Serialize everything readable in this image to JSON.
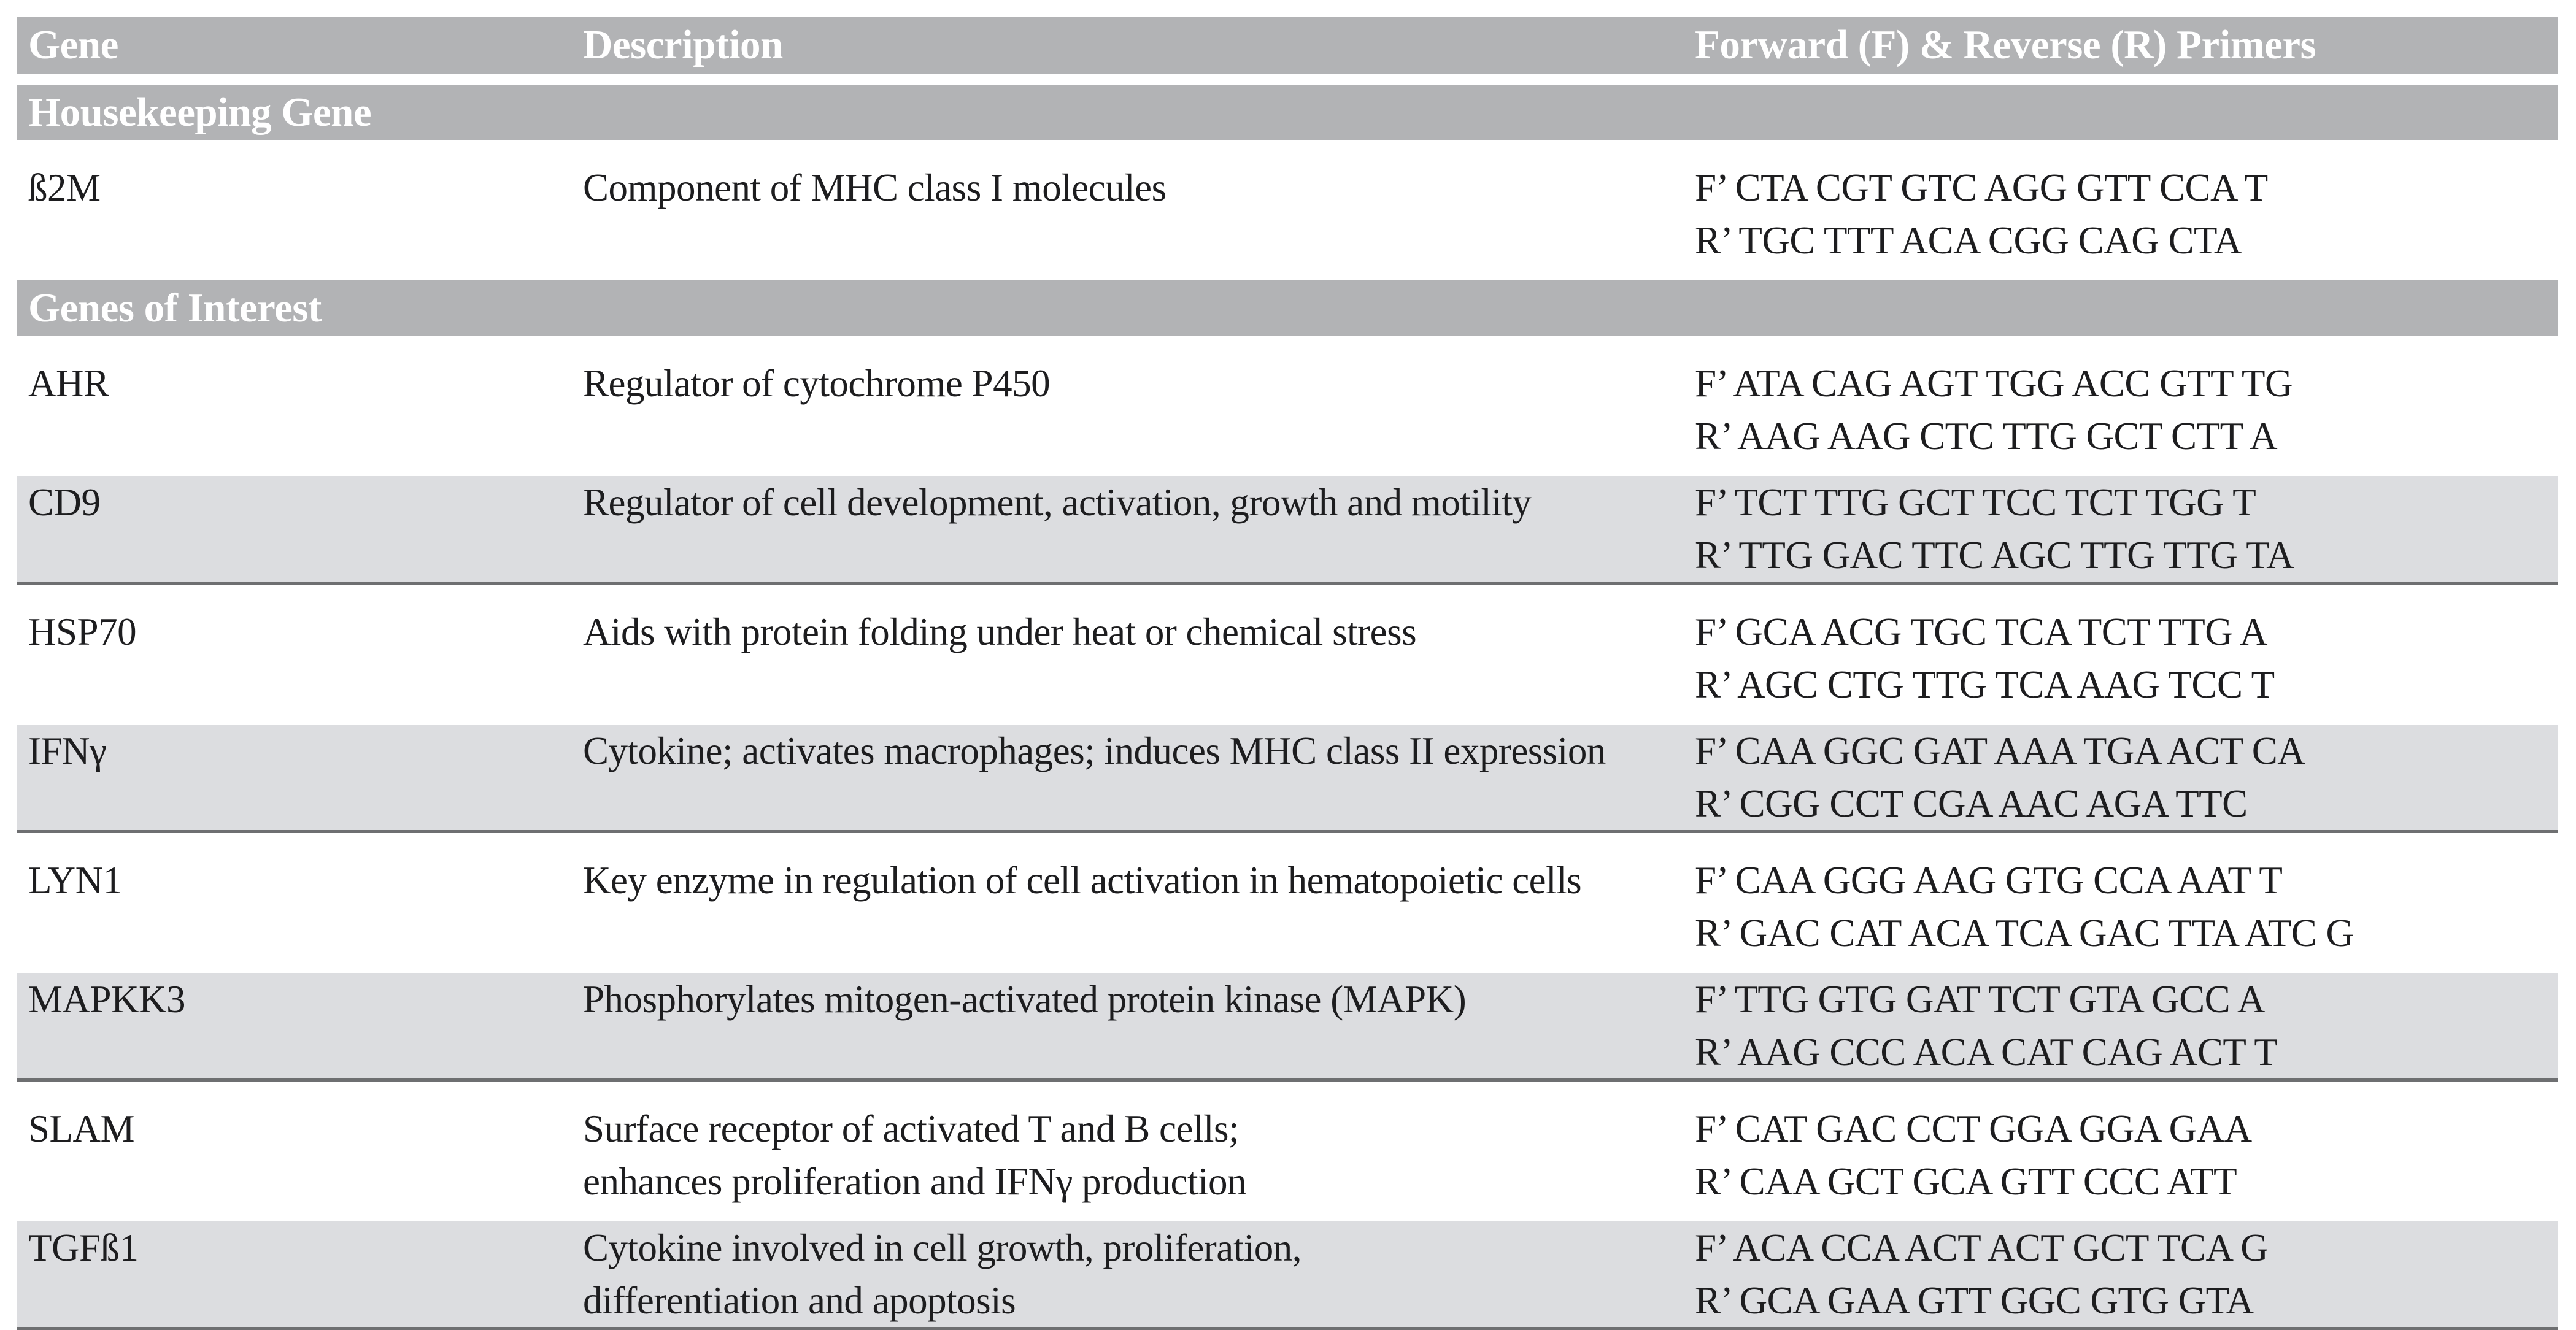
{
  "theme": {
    "bar": "#b2b3b5",
    "shade": "#dcdde0",
    "rule": "#6e6f71",
    "ink": "#1d1d1f",
    "paper": "#ffffff"
  },
  "table": {
    "columns": [
      "Gene",
      "Description",
      "Forward (F) & Reverse (R) Primers"
    ],
    "sections": [
      {
        "title": "Housekeeping Gene",
        "rows": [
          {
            "gene": "ß2M",
            "description": [
              "Component of MHC class I molecules"
            ],
            "primers": [
              "F’ CTA CGT GTC AGG GTT CCA T",
              "R’ TGC TTT ACA CGG CAG CTA"
            ],
            "shaded": false
          }
        ]
      },
      {
        "title": "Genes of Interest",
        "rows": [
          {
            "gene": "AHR",
            "description": [
              "Regulator of cytochrome P450"
            ],
            "primers": [
              "F’ ATA CAG AGT TGG ACC GTT TG",
              "R’ AAG AAG CTC TTG GCT CTT A"
            ],
            "shaded": false
          },
          {
            "gene": "CD9",
            "description": [
              "Regulator of cell development, activation, growth and motility"
            ],
            "primers": [
              "F’ TCT TTG GCT TCC TCT TGG T",
              "R’ TTG GAC TTC AGC TTG TTG TA"
            ],
            "shaded": true
          },
          {
            "gene": "HSP70",
            "description": [
              "Aids with protein folding under heat or chemical stress"
            ],
            "primers": [
              "F’ GCA ACG TGC TCA TCT TTG A",
              "R’ AGC CTG TTG TCA AAG TCC T"
            ],
            "shaded": false
          },
          {
            "gene": "IFNγ",
            "description": [
              "Cytokine; activates macrophages; induces MHC class II expression"
            ],
            "primers": [
              "F’ CAA GGC GAT AAA TGA ACT CA",
              "R’ CGG CCT CGA AAC AGA TTC"
            ],
            "shaded": true
          },
          {
            "gene": "LYN1",
            "description": [
              "Key enzyme in regulation of cell activation in hematopoietic cells"
            ],
            "primers": [
              "F’ CAA GGG AAG GTG CCA AAT T",
              "R’ GAC CAT ACA TCA GAC TTA ATC G"
            ],
            "shaded": false
          },
          {
            "gene": "MAPKK3",
            "description": [
              "Phosphorylates mitogen-activated protein kinase (MAPK)"
            ],
            "primers": [
              "F’ TTG GTG GAT TCT GTA GCC A",
              "R’ AAG CCC ACA CAT CAG ACT T"
            ],
            "shaded": true
          },
          {
            "gene": "SLAM",
            "description": [
              "Surface receptor of activated T and B cells;",
              "enhances proliferation and IFNγ production"
            ],
            "primers": [
              "F’ CAT GAC CCT GGA GGA GAA",
              "R’ CAA GCT GCA GTT CCC ATT"
            ],
            "shaded": false
          },
          {
            "gene": "TGFß1",
            "description": [
              "Cytokine involved in cell growth, proliferation,",
              "differentiation and apoptosis"
            ],
            "primers": [
              "F’ ACA CCA ACT ACT GCT TCA G",
              "R’ GCA GAA GTT GGC GTG GTA"
            ],
            "shaded": true
          }
        ]
      }
    ]
  }
}
